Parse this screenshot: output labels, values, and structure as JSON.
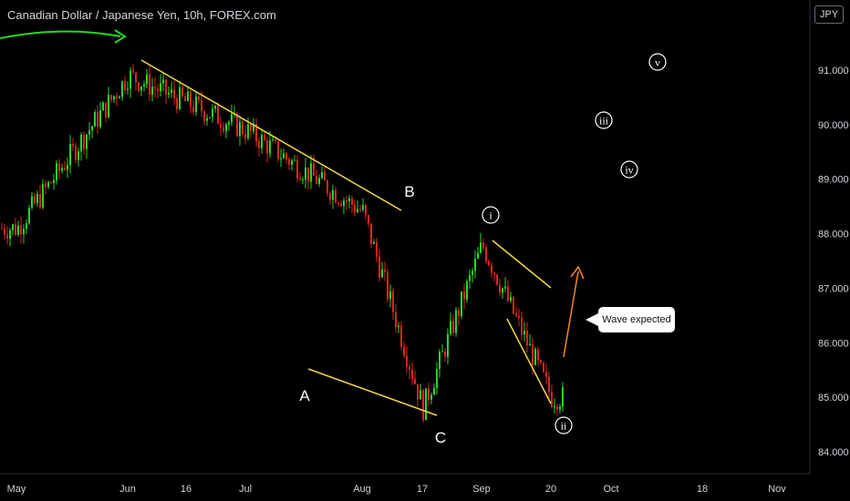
{
  "header": {
    "title": "Canadian Dollar / Japanese Yen, 10h, FOREX.com",
    "currency": "JPY"
  },
  "callout": {
    "text": "Wave expected"
  },
  "colors": {
    "background": "#000000",
    "up": "#26d926",
    "down": "#e0241b",
    "trendline": "#f2d64b",
    "arrow_top": "#26d926",
    "projection": "#f28a1c",
    "text": "#d1d4dc"
  },
  "chart_data": {
    "type": "candlestick",
    "title": "Canadian Dollar / Japanese Yen, 10h, FOREX.com",
    "ylim": [
      83.75,
      92.0
    ],
    "y_ticks": [
      "84.000",
      "85.000",
      "86.000",
      "87.000",
      "88.000",
      "89.000",
      "90.000",
      "91.000"
    ],
    "x_ticks": [
      "May",
      "Jun",
      "16",
      "Jul",
      "Aug",
      "17",
      "Sep",
      "20",
      "Oct",
      "18",
      "Nov"
    ],
    "grid": false,
    "price_path": [
      [
        "May",
        88.1
      ],
      [
        "Jun",
        90.9
      ],
      [
        "Jul",
        89.9
      ],
      [
        "Aug",
        88.4
      ],
      [
        "17",
        84.8
      ],
      [
        "Sep",
        87.8
      ],
      [
        "20",
        85.0
      ]
    ],
    "annotations": [
      {
        "label": "A",
        "x": "Jul",
        "y": 85.2
      },
      {
        "label": "B",
        "x": "Aug",
        "y": 88.75
      },
      {
        "label": "C",
        "x": "17",
        "y": 84.65
      },
      {
        "label": "i",
        "circled": true,
        "x": "Sep",
        "y": 88.35
      },
      {
        "label": "ii",
        "circled": true,
        "x": "20",
        "y": 84.45
      },
      {
        "label": "iii",
        "circled": true,
        "x": "Oct",
        "y": 90.1
      },
      {
        "label": "iv",
        "circled": true,
        "x": "Oct",
        "y": 89.2
      },
      {
        "label": "v",
        "circled": true,
        "x": "Oct",
        "y": 91.15
      }
    ]
  }
}
